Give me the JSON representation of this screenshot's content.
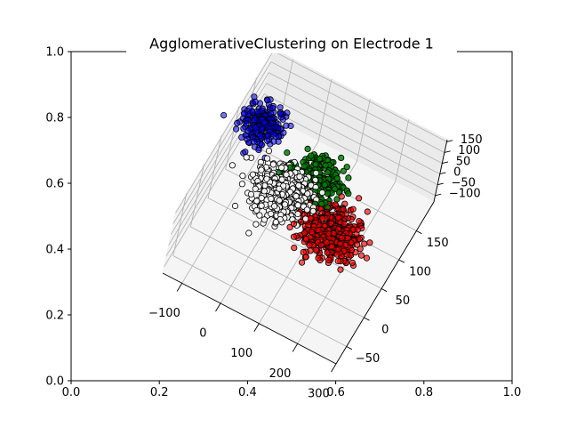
{
  "chart_data": {
    "type": "scatter",
    "title": "AgglomerativeClustering on Electrode 1",
    "outer_axes": {
      "xlim": [
        0.0,
        1.0
      ],
      "ylim": [
        0.0,
        1.0
      ],
      "xticks": [
        "0.0",
        "0.2",
        "0.4",
        "0.6",
        "0.8",
        "1.0"
      ],
      "yticks": [
        "0.0",
        "0.2",
        "0.4",
        "0.6",
        "0.8",
        "1.0"
      ]
    },
    "axes_3d": {
      "x_ticks": [
        "−100",
        "0",
        "100",
        "200",
        "300"
      ],
      "y_ticks": [
        "−50",
        "0",
        "50",
        "100",
        "150"
      ],
      "z_ticks": [
        "−100",
        "−50",
        "0",
        "50",
        "100",
        "150"
      ],
      "grid": true
    },
    "clusters": [
      {
        "color": "#0000ff",
        "center": [
          -100,
          130,
          40
        ],
        "spread": [
          25,
          15,
          20
        ],
        "count": 220,
        "alpha": 0.55
      },
      {
        "color": "#ffffff",
        "center": [
          10,
          70,
          0
        ],
        "spread": [
          35,
          18,
          25
        ],
        "count": 520,
        "alpha": 0.9
      },
      {
        "color": "#008000",
        "center": [
          60,
          110,
          -20
        ],
        "spread": [
          30,
          15,
          20
        ],
        "count": 330,
        "alpha": 0.85
      },
      {
        "color": "#ff0000",
        "center": [
          150,
          60,
          -40
        ],
        "spread": [
          35,
          18,
          20
        ],
        "count": 520,
        "alpha": 0.65
      }
    ]
  }
}
